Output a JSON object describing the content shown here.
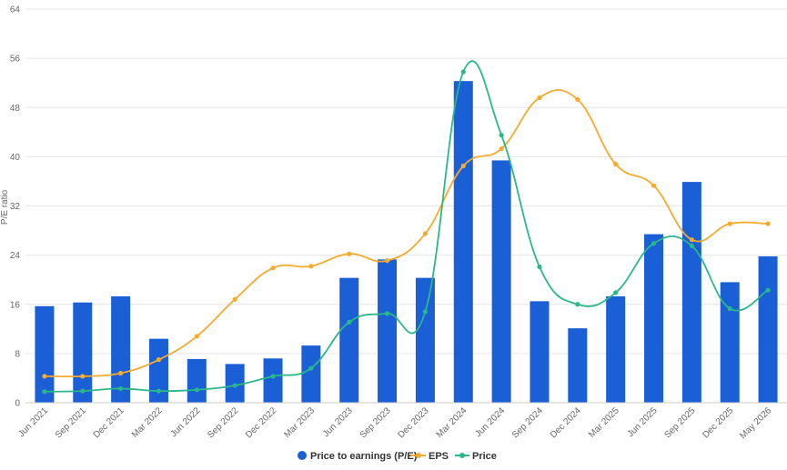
{
  "chart_data": {
    "type": "bar",
    "ylabel": "P/E ratio",
    "ylim": [
      0,
      64
    ],
    "yticks": [
      0,
      8,
      16,
      24,
      32,
      40,
      48,
      56,
      64
    ],
    "grid": true,
    "legend_position": "bottom-center",
    "categories": [
      "Jun 2021",
      "Sep 2021",
      "Dec 2021",
      "Mar 2022",
      "Jun 2022",
      "Sep 2022",
      "Dec 2022",
      "Mar 2023",
      "Jun 2023",
      "Sep 2023",
      "Dec 2023",
      "Mar 2024",
      "Jun 2024",
      "Sep 2024",
      "Dec 2024",
      "Mar 2025",
      "Jun 2025",
      "Sep 2025",
      "Dec 2025",
      "May 2026"
    ],
    "series": [
      {
        "name": "Price to earnings (P/E)",
        "kind": "bar",
        "color": "#1a5fd6",
        "values": [
          15.7,
          16.3,
          17.3,
          10.4,
          7.1,
          6.3,
          7.2,
          9.3,
          20.3,
          23.3,
          20.3,
          52.3,
          39.4,
          16.5,
          12.1,
          17.3,
          27.4,
          35.9,
          19.6,
          23.8
        ]
      },
      {
        "name": "EPS",
        "kind": "line",
        "color": "#f5ab2d",
        "values": [
          4.3,
          4.3,
          4.8,
          7.0,
          10.8,
          16.8,
          21.9,
          22.2,
          24.2,
          23.1,
          27.5,
          38.5,
          41.3,
          49.6,
          49.3,
          38.8,
          35.3,
          26.5,
          29.1,
          29.1
        ]
      },
      {
        "name": "Price",
        "kind": "line",
        "color": "#2bb889",
        "values": [
          1.8,
          1.9,
          2.3,
          1.9,
          2.1,
          2.8,
          4.3,
          5.6,
          13.1,
          14.5,
          14.8,
          53.8,
          43.5,
          22.1,
          16.0,
          17.9,
          25.9,
          25.5,
          15.3,
          18.3
        ]
      }
    ]
  }
}
